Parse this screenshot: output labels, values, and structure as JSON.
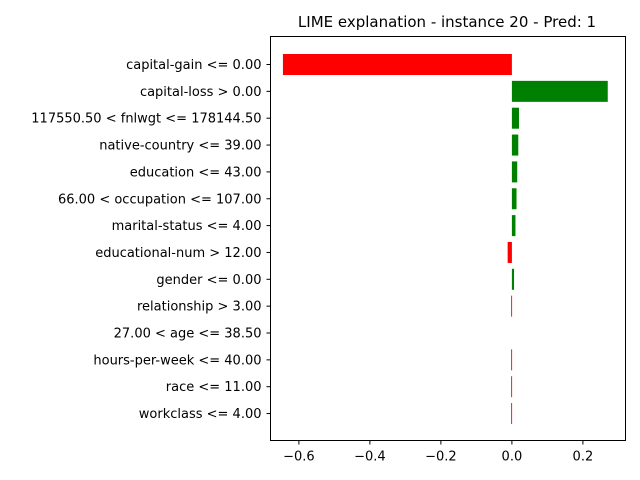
{
  "chart_data": {
    "type": "bar",
    "orientation": "horizontal",
    "title": "LIME explanation - instance 20 - Pred: 1",
    "xlabel": "",
    "ylabel": "",
    "xlim": [
      -0.68,
      0.32
    ],
    "xticks": [
      -0.6,
      -0.4,
      -0.2,
      0.0,
      0.2
    ],
    "xtick_labels": [
      "−0.6",
      "−0.4",
      "−0.2",
      "0.0",
      "0.2"
    ],
    "grid": false,
    "legend": "none",
    "categories": [
      "capital-gain <= 0.00",
      "capital-loss > 0.00",
      "117550.50 < fnlwgt <= 178144.50",
      "native-country <= 39.00",
      "education <= 43.00",
      "66.00 < occupation <= 107.00",
      "marital-status <= 4.00",
      "educational-num > 12.00",
      "gender <= 0.00",
      "relationship > 3.00",
      "27.00 < age <= 38.50",
      "hours-per-week <= 40.00",
      "race <= 11.00",
      "workclass <= 4.00"
    ],
    "values": [
      -0.645,
      0.27,
      0.02,
      0.018,
      0.015,
      0.013,
      0.01,
      -0.012,
      0.006,
      -0.002,
      0.0,
      -0.002,
      -0.002,
      -0.002
    ],
    "colors": {
      "positive": "#008000",
      "negative": "#ff0000"
    }
  }
}
